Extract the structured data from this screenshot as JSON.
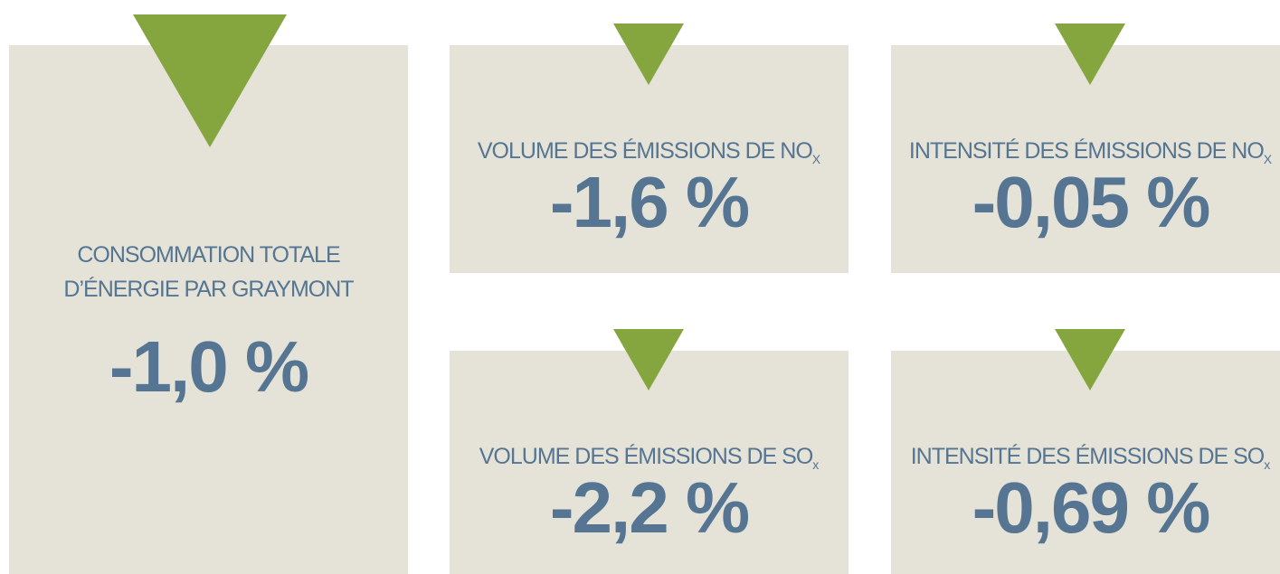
{
  "main": {
    "label_line1": "CONSOMMATION TOTALE",
    "label_line2": "D’ÉNERGIE PAR GRAYMONT",
    "value": "-1,0 %"
  },
  "cards": [
    {
      "label": "VOLUME DES ÉMISSIONS DE NO",
      "sub": "X",
      "value": "-1,6 %"
    },
    {
      "label": "INTENSITÉ DES ÉMISSIONS DE NO",
      "sub": "X",
      "value": "-0,05 %"
    },
    {
      "label": "VOLUME DES ÉMISSIONS DE SO",
      "sub": "x",
      "value": "-2,2 %"
    },
    {
      "label": "INTENSITÉ DES ÉMISSIONS DE SO",
      "sub": "x",
      "value": "-0,69 %"
    }
  ]
}
